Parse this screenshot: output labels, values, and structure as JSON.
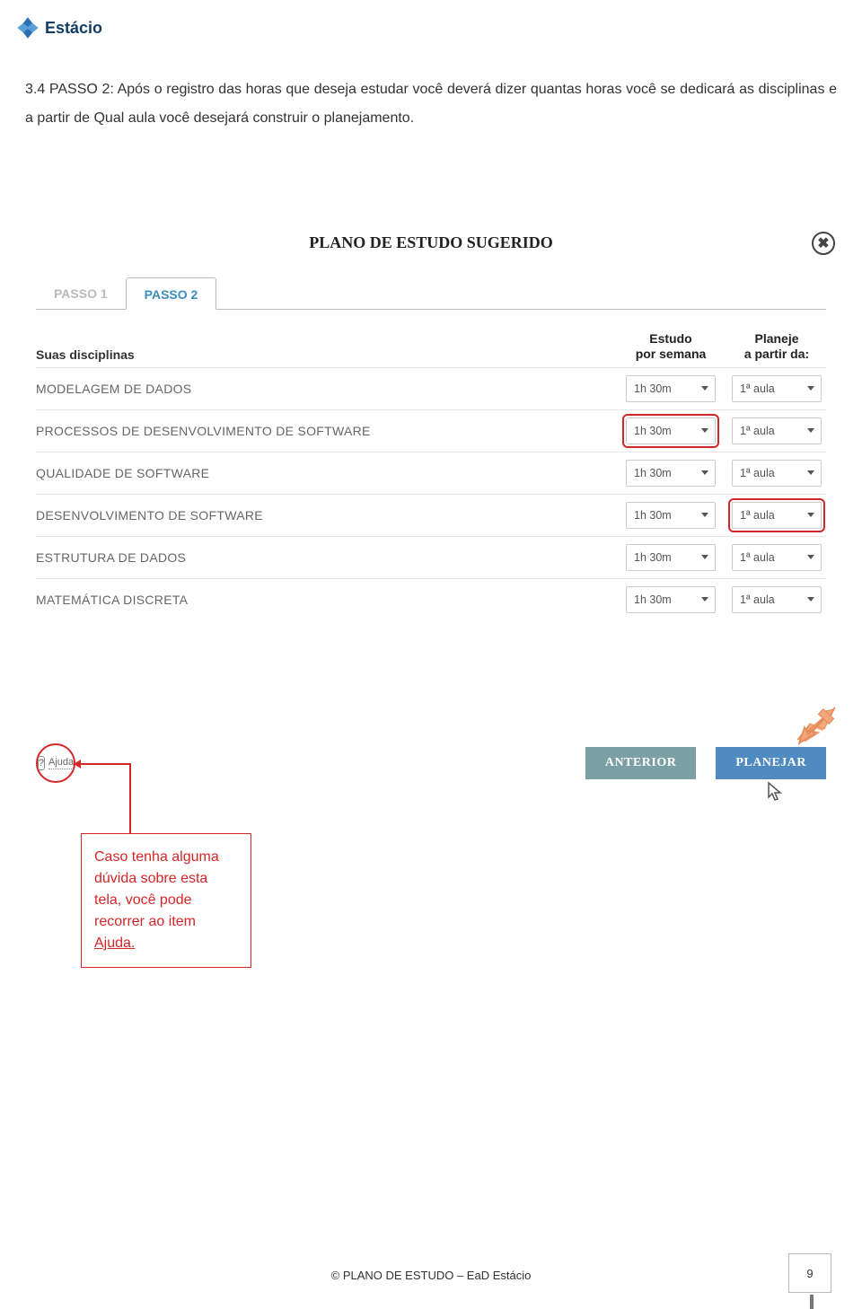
{
  "logo": {
    "text": "Estácio"
  },
  "intro": "3.4 PASSO 2: Após o registro das horas que deseja estudar você deverá dizer quantas horas você se dedicará as disciplinas e a partir de Qual aula você desejará construir o planejamento.",
  "panel": {
    "title": "PLANO DE ESTUDO SUGERIDO",
    "tabs": [
      "PASSO 1",
      "PASSO 2"
    ],
    "active_tab": 1,
    "header_disciplinas": "Suas disciplinas",
    "header_estudo_l1": "Estudo",
    "header_estudo_l2": "por semana",
    "header_planeje_l1": "Planeje",
    "header_planeje_l2": "a partir da:",
    "rows": [
      {
        "name": "MODELAGEM DE DADOS",
        "estudo": "1h 30m",
        "planeje": "1ª aula",
        "hl_estudo": false,
        "hl_planeje": false
      },
      {
        "name": "PROCESSOS DE DESENVOLVIMENTO DE SOFTWARE",
        "estudo": "1h 30m",
        "planeje": "1ª aula",
        "hl_estudo": true,
        "hl_planeje": false
      },
      {
        "name": "QUALIDADE DE SOFTWARE",
        "estudo": "1h 30m",
        "planeje": "1ª aula",
        "hl_estudo": false,
        "hl_planeje": false
      },
      {
        "name": "DESENVOLVIMENTO DE SOFTWARE",
        "estudo": "1h 30m",
        "planeje": "1ª aula",
        "hl_estudo": false,
        "hl_planeje": true
      },
      {
        "name": "ESTRUTURA DE DADOS",
        "estudo": "1h 30m",
        "planeje": "1ª aula",
        "hl_estudo": false,
        "hl_planeje": false
      },
      {
        "name": "MATEMÁTICA DISCRETA",
        "estudo": "1h 30m",
        "planeje": "1ª aula",
        "hl_estudo": false,
        "hl_planeje": false
      }
    ]
  },
  "help": {
    "q": "?",
    "label": "Ajuda"
  },
  "buttons": {
    "prev": "ANTERIOR",
    "plan": "PLANEJAR"
  },
  "tip": {
    "l1": "Caso tenha alguma",
    "l2": "dúvida sobre esta",
    "l3": "tela, você pode",
    "l4": "recorrer ao item",
    "link": "Ajuda."
  },
  "footer": "© PLANO DE ESTUDO – EaD Estácio",
  "page": "9",
  "colors": {
    "primary": "#4f8ac1",
    "secondary": "#7aa0a3",
    "red": "#d32626",
    "orange": "#f29b6b"
  }
}
